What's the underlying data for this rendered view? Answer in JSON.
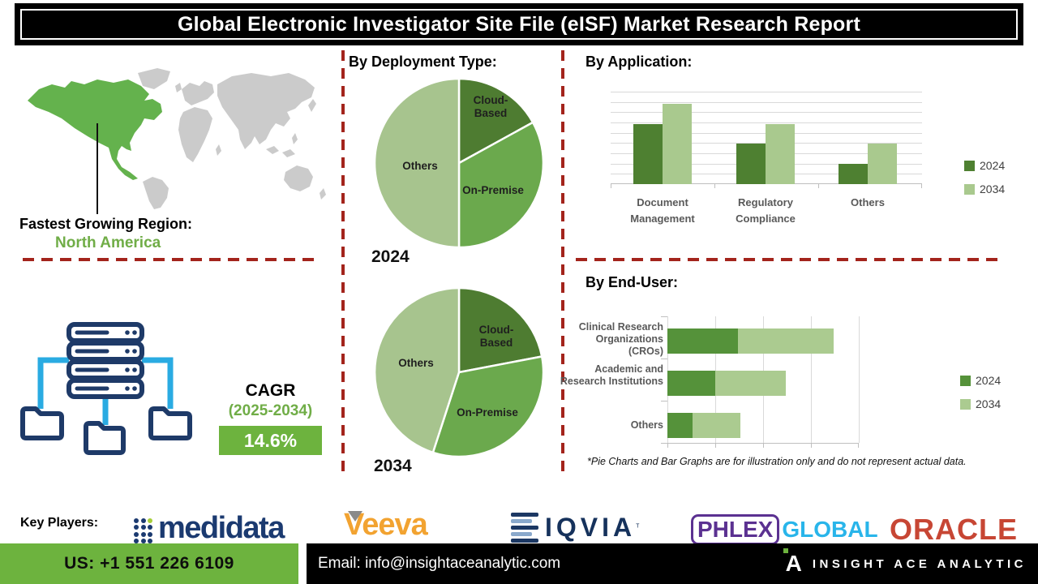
{
  "title": "Global Electronic Investigator Site File (eISF) Market Research Report",
  "fastest_region": {
    "label": "Fastest Growing Region:",
    "value": "North America"
  },
  "sections": {
    "deployment": "By Deployment Type:",
    "application": "By Application:",
    "end_user": "By End-User:"
  },
  "cagr": {
    "label": "CAGR",
    "period": "(2025-2034)",
    "value": "14.6%"
  },
  "disclaimer": "*Pie Charts and Bar Graphs are for illustration only and do not represent actual data.",
  "key_players": {
    "label": "Key Players:",
    "logos": [
      {
        "name": "Medidata",
        "text": "medidata"
      },
      {
        "name": "Veeva",
        "text": "Veeva"
      },
      {
        "name": "IQVIA",
        "text": "IQVIA",
        "mark": "ᵀ"
      },
      {
        "name": "Phlexglobal",
        "text_primary": "PHLEX",
        "text_secondary": "GLOBAL"
      },
      {
        "name": "Oracle",
        "text": "ORACLE"
      }
    ]
  },
  "footer": {
    "phone": "US: +1 551 226 6109",
    "email": "Email: info@insightaceanalytic.com",
    "brand": "INSIGHT ACE ANALYTIC"
  },
  "colors": {
    "green_dark": "#4e7c31",
    "green_mid": "#6ba94d",
    "green_light": "#a7c48e",
    "green_accent": "#6db33e",
    "dashed_red": "#a3241c",
    "navy": "#1e3a68",
    "cyan": "#2aabe2",
    "map_highlight": "#64b24d",
    "map_base": "#cbcbcb",
    "veeva_orange": "#f2a331",
    "phlex_purple": "#5b3191",
    "phlex_cyan": "#29b5ea",
    "oracle_red": "#c74634"
  },
  "chart_data": [
    {
      "id": "deployment_2024",
      "type": "pie",
      "title": "2024",
      "labels": [
        "Cloud-Based",
        "On-Premise",
        "Others"
      ],
      "values": [
        17,
        33,
        50
      ],
      "colors": [
        "#4e7c31",
        "#6ba94d",
        "#a7c48e"
      ]
    },
    {
      "id": "deployment_2034",
      "type": "pie",
      "title": "2034",
      "labels": [
        "Cloud-Based",
        "On-Premise",
        "Others"
      ],
      "values": [
        22,
        33,
        45
      ],
      "colors": [
        "#4e7c31",
        "#6ba94d",
        "#a7c48e"
      ]
    },
    {
      "id": "by_application",
      "type": "bar",
      "categories": [
        "Document Management",
        "Regulatory Compliance",
        "Others"
      ],
      "series": [
        {
          "name": "2024",
          "values": [
            65,
            44,
            22
          ]
        },
        {
          "name": "2034",
          "values": [
            87,
            65,
            44
          ]
        }
      ],
      "colors": [
        "#4e8031",
        "#a9c98e"
      ],
      "ylim": [
        0,
        100
      ],
      "grid": true,
      "legend_position": "right"
    },
    {
      "id": "by_end_user",
      "type": "bar-horizontal-stacked",
      "categories": [
        "Clinical Research Organizations (CROs)",
        "Academic and Research Institutions",
        "Others"
      ],
      "series": [
        {
          "name": "2024",
          "values": [
            37,
            25,
            13
          ]
        },
        {
          "name": "2034",
          "values": [
            50,
            37,
            25
          ]
        }
      ],
      "colors": [
        "#55923a",
        "#abcb90"
      ],
      "xlim": [
        0,
        100
      ],
      "grid": true,
      "legend_position": "right"
    }
  ]
}
